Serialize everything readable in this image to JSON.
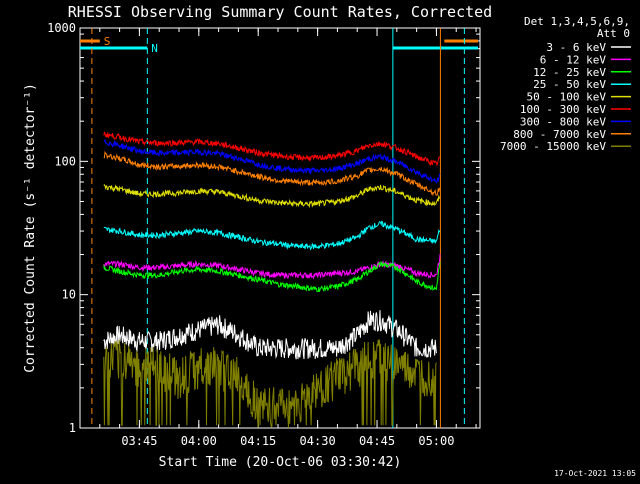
{
  "chart_data": {
    "type": "line",
    "title": "RHESSI Observing Summary Count Rates, Corrected",
    "xlabel": "Start Time (20-Oct-06 03:30:42)",
    "ylabel": "Corrected Count Rate (s⁻¹ detector⁻¹)",
    "y_scale": "log",
    "ylim": [
      1,
      1000
    ],
    "y_ticks": [
      1,
      10,
      100,
      1000
    ],
    "xlim": [
      "03:30",
      "05:11"
    ],
    "x_ticks": [
      "03:45",
      "04:00",
      "04:15",
      "04:30",
      "04:45",
      "05:00"
    ],
    "grid": false,
    "legend_placement": "right",
    "legend_header": [
      "Det 1,3,4,5,6,9,",
      "Att 0"
    ],
    "footer_timestamp": "17-Oct-2021 13:05",
    "flags": [
      {
        "label": "S",
        "color": "#ff8000"
      },
      {
        "label": "N",
        "color": "#00ffff"
      }
    ],
    "series": [
      {
        "name": "3 - 6 keV",
        "color": "#ffffff",
        "x": [
          "03:36",
          "03:40",
          "03:45",
          "03:50",
          "03:55",
          "04:00",
          "04:05",
          "04:10",
          "04:15",
          "04:20",
          "04:25",
          "04:30",
          "04:35",
          "04:40",
          "04:43",
          "04:46",
          "04:50",
          "04:55",
          "05:00"
        ],
        "y": [
          4.5,
          5,
          4.5,
          4.5,
          5,
          5.5,
          6,
          5,
          4,
          4,
          4,
          4,
          4,
          5,
          6.5,
          6.5,
          5.5,
          4,
          4
        ]
      },
      {
        "name": "6 - 12 keV",
        "color": "#ff00ff",
        "x": [
          "03:36",
          "03:40",
          "03:45",
          "03:50",
          "03:55",
          "04:00",
          "04:05",
          "04:10",
          "04:15",
          "04:20",
          "04:25",
          "04:30",
          "04:35",
          "04:40",
          "04:43",
          "04:46",
          "04:50",
          "04:55",
          "05:00",
          "05:01"
        ],
        "y": [
          17,
          17,
          16,
          16,
          16.5,
          17,
          16.5,
          15.5,
          14.5,
          14,
          14,
          14,
          14.5,
          15,
          16,
          17,
          16.5,
          14.5,
          14,
          20
        ]
      },
      {
        "name": "12 - 25 keV",
        "color": "#00ff00",
        "x": [
          "03:36",
          "03:40",
          "03:45",
          "03:50",
          "03:55",
          "04:00",
          "04:05",
          "04:10",
          "04:15",
          "04:20",
          "04:25",
          "04:30",
          "04:35",
          "04:40",
          "04:43",
          "04:46",
          "04:50",
          "04:55",
          "05:00",
          "05:01"
        ],
        "y": [
          16,
          15,
          14,
          14,
          15,
          15.5,
          15,
          14,
          13,
          12,
          11.5,
          11,
          11.5,
          13,
          15,
          17,
          16,
          12.5,
          11,
          18
        ]
      },
      {
        "name": "25 - 50 keV",
        "color": "#00ffff",
        "x": [
          "03:36",
          "03:40",
          "03:45",
          "03:50",
          "03:55",
          "04:00",
          "04:05",
          "04:10",
          "04:15",
          "04:20",
          "04:25",
          "04:30",
          "04:35",
          "04:40",
          "04:43",
          "04:46",
          "04:50",
          "04:55",
          "05:00",
          "05:01"
        ],
        "y": [
          31,
          30,
          28,
          28,
          29,
          30,
          29,
          27,
          25,
          24,
          23,
          23,
          24,
          27,
          32,
          34,
          31,
          26,
          25,
          32
        ]
      },
      {
        "name": "50 - 100 keV",
        "color": "#e0e000",
        "x": [
          "03:36",
          "03:40",
          "03:45",
          "03:50",
          "03:55",
          "04:00",
          "04:05",
          "04:10",
          "04:15",
          "04:20",
          "04:25",
          "04:30",
          "04:35",
          "04:40",
          "04:43",
          "04:46",
          "04:50",
          "04:55",
          "05:00",
          "05:01"
        ],
        "y": [
          65,
          62,
          57,
          57,
          58,
          60,
          59,
          55,
          51,
          49,
          48,
          48,
          50,
          55,
          62,
          64,
          59,
          51,
          48,
          55
        ]
      },
      {
        "name": "100 - 300 keV",
        "color": "#ff0000",
        "x": [
          "03:36",
          "03:40",
          "03:45",
          "03:50",
          "03:55",
          "04:00",
          "04:05",
          "04:10",
          "04:15",
          "04:20",
          "04:25",
          "04:30",
          "04:35",
          "04:40",
          "04:43",
          "04:46",
          "04:50",
          "04:55",
          "05:00",
          "05:01"
        ],
        "y": [
          160,
          152,
          140,
          137,
          138,
          140,
          136,
          126,
          116,
          110,
          107,
          106,
          110,
          120,
          132,
          136,
          126,
          108,
          95,
          108
        ]
      },
      {
        "name": "300 - 800 keV",
        "color": "#0000ff",
        "x": [
          "03:36",
          "03:40",
          "03:45",
          "03:50",
          "03:55",
          "04:00",
          "04:05",
          "04:10",
          "04:15",
          "04:20",
          "04:25",
          "04:30",
          "04:35",
          "04:40",
          "04:43",
          "04:46",
          "04:50",
          "04:55",
          "05:00",
          "05:01"
        ],
        "y": [
          140,
          132,
          119,
          115,
          116,
          118,
          114,
          105,
          95,
          89,
          86,
          85,
          88,
          96,
          105,
          108,
          99,
          83,
          70,
          78
        ]
      },
      {
        "name": "800 - 7000 keV",
        "color": "#ff8000",
        "x": [
          "03:36",
          "03:40",
          "03:45",
          "03:50",
          "03:55",
          "04:00",
          "04:05",
          "04:10",
          "04:15",
          "04:20",
          "04:25",
          "04:30",
          "04:35",
          "04:40",
          "04:43",
          "04:46",
          "04:50",
          "04:55",
          "05:00",
          "05:01"
        ],
        "y": [
          112,
          105,
          94,
          91,
          92,
          94,
          91,
          84,
          77,
          72,
          70,
          69,
          71,
          78,
          86,
          88,
          80,
          67,
          57,
          64
        ]
      },
      {
        "name": "7000 - 15000 keV",
        "color": "#808000",
        "x": [
          "03:36",
          "03:40",
          "03:45",
          "03:50",
          "03:55",
          "04:00",
          "04:05",
          "04:10",
          "04:15",
          "04:20",
          "04:25",
          "04:30",
          "04:35",
          "04:40",
          "04:43",
          "04:46",
          "04:50",
          "04:55",
          "05:00"
        ],
        "y": [
          3,
          3.5,
          3,
          3,
          2.5,
          3,
          3,
          2.5,
          1.5,
          1.5,
          1.5,
          2,
          2.5,
          3,
          3.5,
          3.5,
          3,
          2.5,
          2.5
        ]
      }
    ]
  }
}
